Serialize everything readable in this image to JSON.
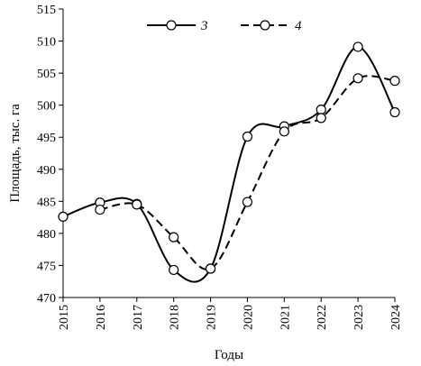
{
  "chart_data": {
    "type": "line",
    "xlabel": "Годы",
    "ylabel": "Площадь, тыс. га",
    "x": [
      "2015",
      "2016",
      "2017",
      "2018",
      "2019",
      "2020",
      "2021",
      "2022",
      "2023",
      "2024"
    ],
    "ylim": [
      470,
      515
    ],
    "yticks": [
      470,
      475,
      480,
      485,
      490,
      495,
      500,
      505,
      510,
      515
    ],
    "grid": false,
    "legend_position": "top-center",
    "series": [
      {
        "name": "3",
        "line_style": "solid",
        "color": "#000000",
        "values": [
          482.6,
          484.8,
          484.6,
          474.3,
          474.5,
          495.1,
          496.7,
          499.3,
          509.1,
          498.9
        ]
      },
      {
        "name": "4",
        "line_style": "dashed",
        "color": "#000000",
        "values": [
          null,
          483.7,
          484.5,
          479.4,
          474.5,
          484.9,
          495.9,
          498.0,
          504.2,
          503.8
        ]
      }
    ]
  }
}
